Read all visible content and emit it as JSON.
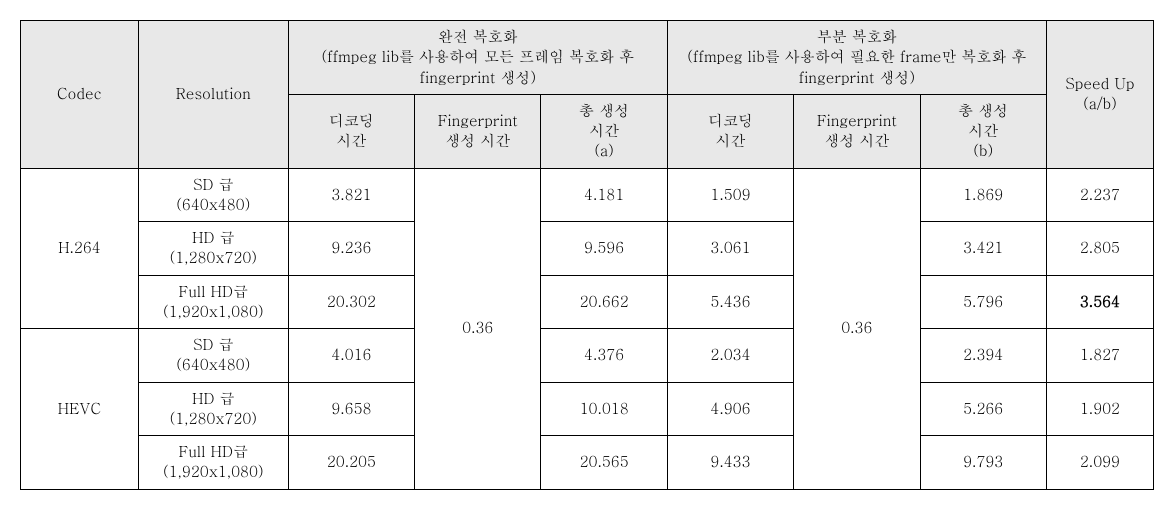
{
  "headers": {
    "codec": "Codec",
    "resolution": "Resolution",
    "full_decode_title": "완전 복호화\n(ffmpeg lib를 사용하여 모든 프레임 복호화 후 fingerprint 생성)",
    "partial_decode_title": "부분 복호화\n(ffmpeg lib를 사용하여 필요한 frame만 복호화 후 fingerprint 생성)",
    "speedup": "Speed Up\n(a/b)",
    "decode_time": "디코딩\n시간",
    "fp_time": "Fingerprint\n생성 시간",
    "total_a": "총 생성\n시간\n(a)",
    "total_b": "총 생성\n시간\n(b)"
  },
  "fp_time_full": "0.36",
  "fp_time_partial": "0.36",
  "codecs": [
    {
      "name": "H.264",
      "rows": [
        {
          "res": "SD 급\n(640x480)",
          "full_dec": "3.821",
          "full_tot": "4.181",
          "part_dec": "1.509",
          "part_tot": "1.869",
          "speed": "2.237",
          "bold": false
        },
        {
          "res": "HD 급\n(1,280x720)",
          "full_dec": "9.236",
          "full_tot": "9.596",
          "part_dec": "3.061",
          "part_tot": "3.421",
          "speed": "2.805",
          "bold": false
        },
        {
          "res": "Full HD급\n(1,920x1,080)",
          "full_dec": "20.302",
          "full_tot": "20.662",
          "part_dec": "5.436",
          "part_tot": "5.796",
          "speed": "3.564",
          "bold": true
        }
      ]
    },
    {
      "name": "HEVC",
      "rows": [
        {
          "res": "SD 급\n(640x480)",
          "full_dec": "4.016",
          "full_tot": "4.376",
          "part_dec": "2.034",
          "part_tot": "2.394",
          "speed": "1.827",
          "bold": false
        },
        {
          "res": "HD 급\n(1,280x720)",
          "full_dec": "9.658",
          "full_tot": "10.018",
          "part_dec": "4.906",
          "part_tot": "5.266",
          "speed": "1.902",
          "bold": false
        },
        {
          "res": "Full HD급\n(1,920x1,080)",
          "full_dec": "20.205",
          "full_tot": "20.565",
          "part_dec": "9.433",
          "part_tot": "9.793",
          "speed": "2.099",
          "bold": false
        }
      ]
    }
  ]
}
